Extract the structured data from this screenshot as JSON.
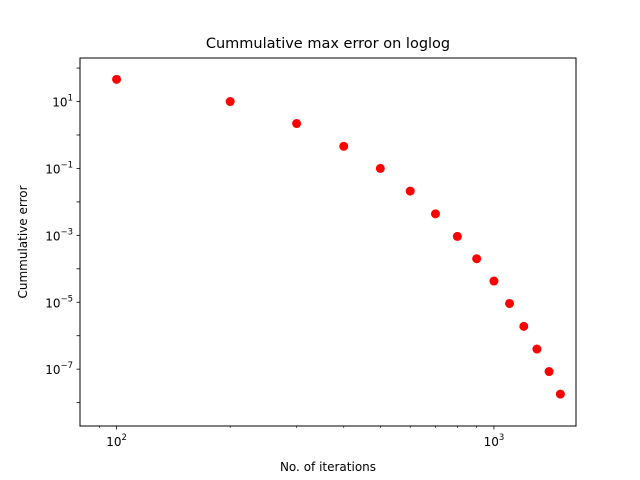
{
  "chart_data": {
    "type": "scatter",
    "title": "Cummulative max error on loglog",
    "xlabel": "No. of iterations",
    "ylabel": "Cummulative error",
    "xscale": "log",
    "yscale": "log",
    "xlim": [
      80,
      1650
    ],
    "ylim": [
      2e-09,
      200
    ],
    "grid": false,
    "marker_color": "#ff0000",
    "x_ticks": [
      {
        "value": 100,
        "base": "10",
        "exp": "2"
      },
      {
        "value": 1000,
        "base": "10",
        "exp": "3"
      }
    ],
    "y_ticks": [
      {
        "value": 10,
        "base": "10",
        "exp": "1"
      },
      {
        "value": 0.1,
        "base": "10",
        "exp": "−1"
      },
      {
        "value": 0.001,
        "base": "10",
        "exp": "−3"
      },
      {
        "value": 1e-05,
        "base": "10",
        "exp": "−5"
      },
      {
        "value": 1e-07,
        "base": "10",
        "exp": "−7"
      }
    ],
    "x": [
      100,
      200,
      300,
      400,
      500,
      600,
      700,
      800,
      900,
      1000,
      1100,
      1200,
      1300,
      1400,
      1500
    ],
    "y": [
      46,
      10,
      2.2,
      0.46,
      0.1,
      0.021,
      0.0044,
      0.00093,
      0.0002,
      4.3e-05,
      9.2e-06,
      1.9e-06,
      4e-07,
      8.5e-08,
      1.8e-08
    ]
  }
}
